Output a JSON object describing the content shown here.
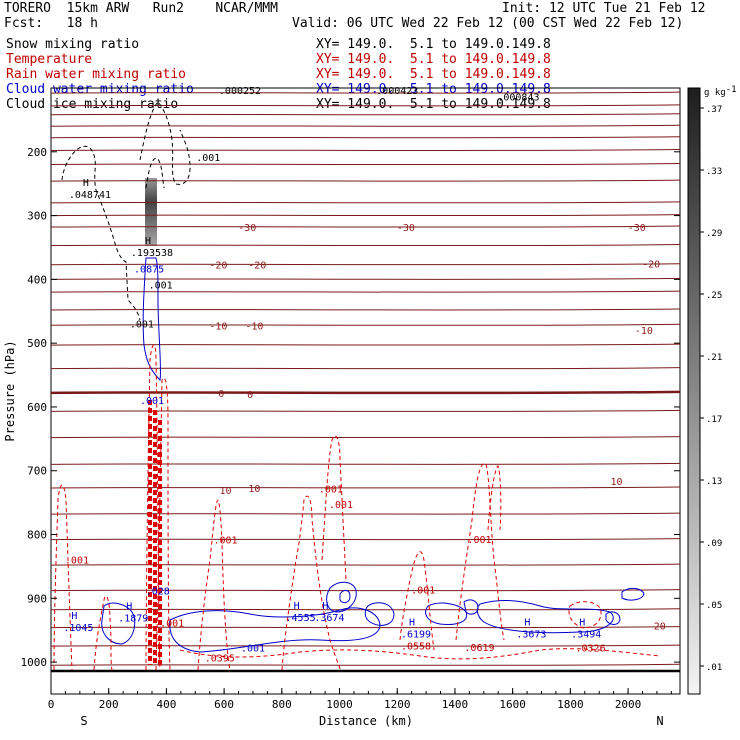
{
  "header": {
    "model": "TORERO  15km ARW   Run2    NCAR/MMM",
    "init": "Init: 12 UTC Tue 21 Feb 12",
    "fcst": "Fcst:   18 h",
    "valid": "Valid: 06 UTC Wed 22 Feb 12 (00 CST Wed 22 Feb 12)",
    "fields": [
      {
        "name": "Snow mixing ratio",
        "xy": "XY= 149.0.  5.1 to 149.0.149.8",
        "color": "#000000"
      },
      {
        "name": "Temperature",
        "xy": "XY= 149.0.  5.1 to 149.0.149.8",
        "color": "#c00000"
      },
      {
        "name": "Rain water mixing ratio",
        "xy": "XY= 149.0.  5.1 to 149.0.149.8",
        "color": "#c00000"
      },
      {
        "name": "Cloud water mixing ratio",
        "xy": "XY= 149.0.  5.1 to 149.0.149.8",
        "color": "#0000cc"
      },
      {
        "name": "Cloud ice mixing ratio",
        "xy": "XY= 149.0.  5.1 to 149.0.149.8",
        "color": "#000000"
      }
    ]
  },
  "chart_data": {
    "type": "cross-section contour",
    "xlabel": "Distance (km)",
    "ylabel": "Pressure (hPa)",
    "xlim": [
      0,
      2180
    ],
    "ylim": [
      100,
      1050
    ],
    "x_ticks": [
      0,
      200,
      400,
      600,
      800,
      1000,
      1200,
      1400,
      1600,
      1800,
      2000
    ],
    "y_ticks": [
      200,
      300,
      400,
      500,
      600,
      700,
      800,
      900,
      1000
    ],
    "x_end_labels": {
      "left": "S",
      "right": "N"
    },
    "colorbar": {
      "unit": "g kg",
      "unit_exp": "-1",
      "ticks": [
        ".01",
        ".05",
        ".09",
        ".13",
        ".17",
        ".21",
        ".25",
        ".29",
        ".33",
        ".37"
      ]
    },
    "temperature_labels": [
      {
        "text": "-30",
        "x": 680,
        "p": 318
      },
      {
        "text": "-30",
        "x": 1230,
        "p": 318
      },
      {
        "text": "-30",
        "x": 2030,
        "p": 318
      },
      {
        "text": "-20",
        "x": 580,
        "p": 377
      },
      {
        "text": "-20",
        "x": 715,
        "p": 377
      },
      {
        "text": "-20",
        "x": 2080,
        "p": 375
      },
      {
        "text": "-10",
        "x": 580,
        "p": 472
      },
      {
        "text": "-10",
        "x": 705,
        "p": 472
      },
      {
        "text": "-10",
        "x": 2055,
        "p": 479
      },
      {
        "text": "0",
        "x": 590,
        "p": 578
      },
      {
        "text": "0",
        "x": 690,
        "p": 580
      },
      {
        "text": "10",
        "x": 605,
        "p": 730
      },
      {
        "text": "10",
        "x": 705,
        "p": 727
      },
      {
        "text": "10",
        "x": 1960,
        "p": 716
      },
      {
        "text": "20",
        "x": 2110,
        "p": 943
      }
    ],
    "contour_labels": [
      {
        "text": ".001",
        "x": 545,
        "p": 208,
        "color": "#000000"
      },
      {
        "text": ".001",
        "x": 380,
        "p": 408,
        "color": "#000000"
      },
      {
        "text": ".001",
        "x": 315,
        "p": 469,
        "color": "#000000"
      },
      {
        "text": ".001",
        "x": 350,
        "p": 589,
        "color": "#0000cc"
      },
      {
        "text": ".0875",
        "x": 340,
        "p": 383,
        "color": "#0000cc"
      },
      {
        "text": ".001",
        "x": 970,
        "p": 728,
        "color": "#c00000"
      },
      {
        "text": ".001",
        "x": 1005,
        "p": 752,
        "color": "#c00000"
      },
      {
        "text": ".001",
        "x": 605,
        "p": 808,
        "color": "#c00000"
      },
      {
        "text": ".001",
        "x": 90,
        "p": 839,
        "color": "#c00000"
      },
      {
        "text": ".001",
        "x": 1485,
        "p": 807,
        "color": "#c00000"
      },
      {
        "text": ".001",
        "x": 1290,
        "p": 886,
        "color": "#c00000"
      },
      {
        "text": ".001",
        "x": 420,
        "p": 938,
        "color": "#c00000"
      },
      {
        "text": ".001",
        "x": 700,
        "p": 977,
        "color": "#0000cc"
      },
      {
        "text": ".0395",
        "x": 585,
        "p": 993,
        "color": "#c00000"
      },
      {
        "text": ".0558",
        "x": 1265,
        "p": 974,
        "color": "#c00000"
      },
      {
        "text": ".0619",
        "x": 1485,
        "p": 976,
        "color": "#c00000"
      },
      {
        "text": ".0326",
        "x": 1870,
        "p": 977,
        "color": "#c00000"
      },
      {
        "text": ".028",
        "x": 370,
        "p": 888,
        "color": "#0000cc"
      },
      {
        "text": ".000252",
        "x": 655,
        "p": 103,
        "color": "#000000"
      },
      {
        "text": ".000423",
        "x": 1200,
        "p": 103,
        "color": "#000000"
      },
      {
        "text": ".000843",
        "x": 1620,
        "p": 113,
        "color": "#000000"
      }
    ],
    "maxima": [
      {
        "text": ".048741",
        "x": 135,
        "p": 266,
        "color": "#000000"
      },
      {
        "text": ".193538",
        "x": 350,
        "p": 357,
        "color": "#000000"
      },
      {
        "text": ".1045",
        "x": 95,
        "p": 945,
        "color": "#0000cc"
      },
      {
        "text": ".1879",
        "x": 285,
        "p": 930,
        "color": "#0000cc"
      },
      {
        "text": ".4555",
        "x": 865,
        "p": 929,
        "color": "#0000cc"
      },
      {
        "text": ".3674",
        "x": 965,
        "p": 929,
        "color": "#0000cc"
      },
      {
        "text": ".6199",
        "x": 1265,
        "p": 955,
        "color": "#0000cc"
      },
      {
        "text": ".3673",
        "x": 1665,
        "p": 955,
        "color": "#0000cc"
      },
      {
        "text": ".3494",
        "x": 1855,
        "p": 955,
        "color": "#0000cc"
      }
    ],
    "temperature_isotherms_c": [
      -80,
      -70,
      -60,
      -50,
      -40,
      -30,
      -20,
      -10,
      0,
      10,
      20
    ]
  }
}
